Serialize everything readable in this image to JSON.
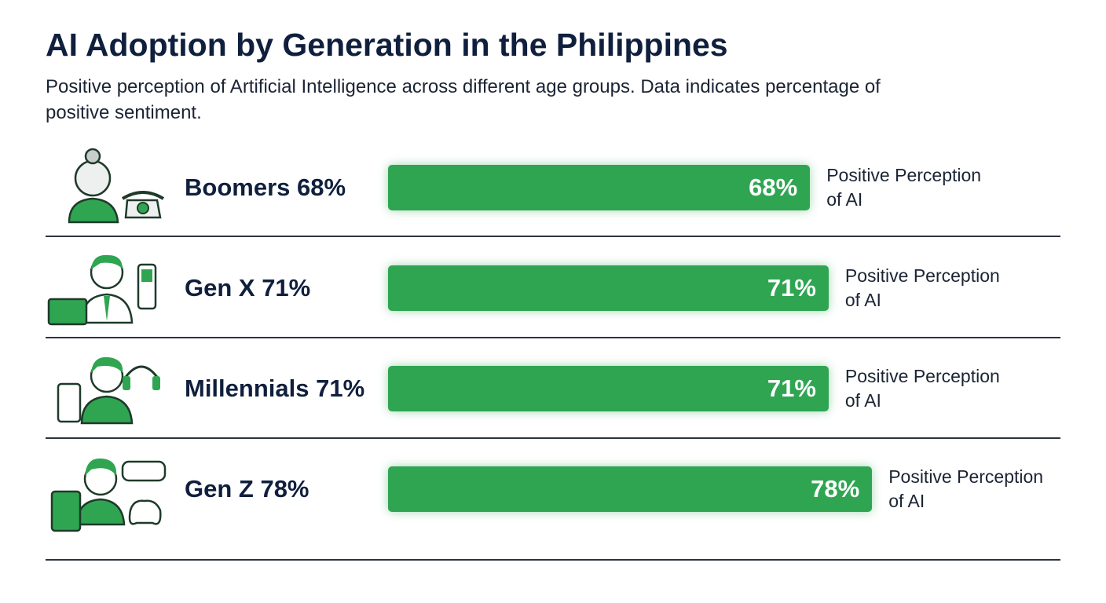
{
  "chart_data": {
    "type": "bar",
    "orientation": "horizontal",
    "title": "AI Adoption by Generation in the Philippines",
    "subtitle": "Positive perception of Artificial Intelligence across different age groups. Data indicates percentage of positive sentiment.",
    "categories": [
      "Boomers 68%",
      "Gen X 71%",
      "Millennials 71%",
      "Gen Z 78%"
    ],
    "values": [
      68,
      71,
      71,
      78
    ],
    "value_labels": [
      "68%",
      "71%",
      "71%",
      "78%"
    ],
    "annotation": "Positive Perception of AI",
    "color": "#2fa552"
  }
}
